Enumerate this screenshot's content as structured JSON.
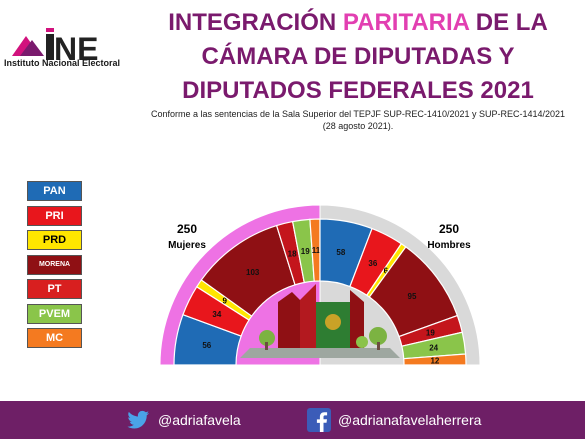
{
  "logo": {
    "brand": "INE",
    "name": "Instituto Nacional Electoral"
  },
  "title": {
    "line1_a": "INTEGRACIÓN ",
    "line1_accent": "PARITARIA",
    "line1_b": " DE LA",
    "line2": "CÁMARA DE DIPUTADAS Y",
    "line3": "DIPUTADOS FEDERALES 2021"
  },
  "subtitle": {
    "line1": "Conforme a las sentencias de la Sala Superior del TEPJF SUP-REC-1410/2021 y SUP-REC-1414/2021",
    "line2": "(28 agosto 2021)."
  },
  "legend": [
    {
      "label": "PAN",
      "color": "#1f6bb5",
      "text_color": "#ffffff"
    },
    {
      "label": "PRI",
      "color": "#e8161c",
      "text_color": "#ffffff"
    },
    {
      "label": "PRD",
      "color": "#ffe600",
      "text_color": "#000000"
    },
    {
      "label": "MORENA",
      "color": "#8f1014",
      "text_color": "#ffffff"
    },
    {
      "label": "PT",
      "color": "#d81f1f",
      "text_color": "#ffffff"
    },
    {
      "label": "PVEM",
      "color": "#8ac54a",
      "text_color": "#ffffff"
    },
    {
      "label": "MC",
      "color": "#f47a20",
      "text_color": "#ffffff"
    }
  ],
  "chart_data": {
    "type": "pie",
    "groups": [
      {
        "total": "250",
        "label": "Mujeres",
        "background": "#ee72e4",
        "slices": [
          {
            "party": "PAN",
            "value": 56,
            "color": "#1f6bb5"
          },
          {
            "party": "PRI",
            "value": 34,
            "color": "#e8161c"
          },
          {
            "party": "PRD",
            "value": 9,
            "color": "#ffe600"
          },
          {
            "party": "MORENA",
            "value": 103,
            "color": "#8f1014"
          },
          {
            "party": "PT",
            "value": 18,
            "color": "#c4151c"
          },
          {
            "party": "PVEM",
            "value": 19,
            "color": "#8ac54a"
          },
          {
            "party": "MC",
            "value": 11,
            "color": "#f47a20"
          }
        ]
      },
      {
        "total": "250",
        "label": "Hombres",
        "background": "#d9d9d9",
        "slices": [
          {
            "party": "PAN",
            "value": 58,
            "color": "#1f6bb5"
          },
          {
            "party": "PRI",
            "value": 36,
            "color": "#e8161c"
          },
          {
            "party": "PRD",
            "value": 6,
            "color": "#ffe600"
          },
          {
            "party": "MORENA",
            "value": 95,
            "color": "#8f1014"
          },
          {
            "party": "PT",
            "value": 19,
            "color": "#c4151c"
          },
          {
            "party": "PVEM",
            "value": 24,
            "color": "#8ac54a"
          },
          {
            "party": "MC",
            "value": 12,
            "color": "#f47a20"
          }
        ]
      }
    ]
  },
  "footer": {
    "twitter": "@adriafavela",
    "facebook": "@adrianafavelaherrera"
  }
}
